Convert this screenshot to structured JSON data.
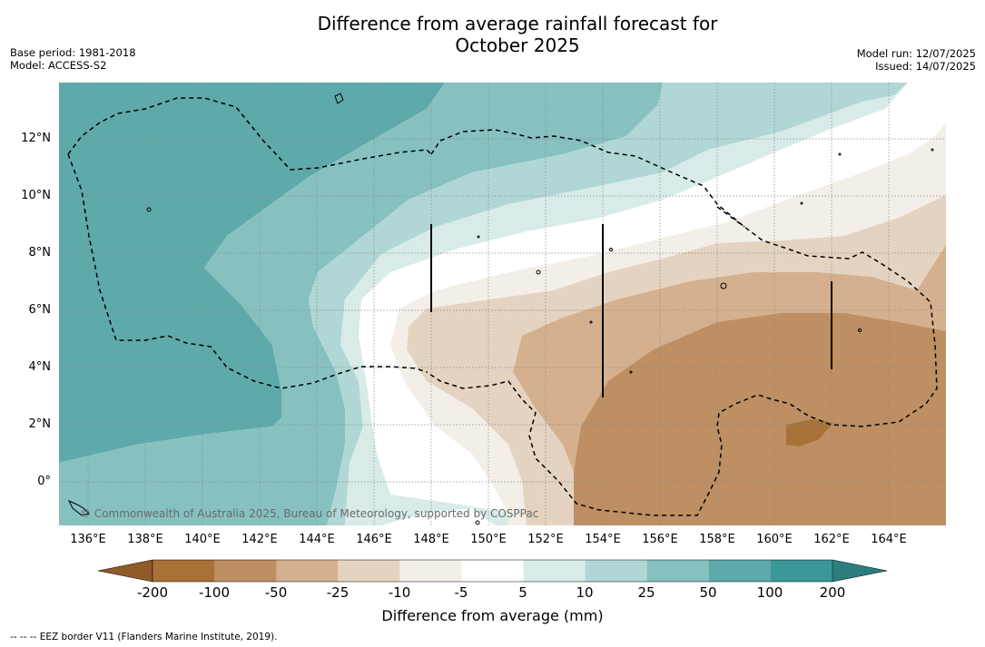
{
  "title": {
    "line1": "Difference from average rainfall forecast for",
    "line2": "October 2025"
  },
  "meta_left": {
    "base_period": "Base period: 1981-2018",
    "model": "Model: ACCESS-S2"
  },
  "meta_right": {
    "model_run": "Model run: 12/07/2025",
    "issued": "Issued: 14/07/2025"
  },
  "map": {
    "lat_labels": [
      "12°N",
      "10°N",
      "8°N",
      "6°N",
      "4°N",
      "2°N",
      "0°"
    ],
    "lon_labels": [
      "136°E",
      "138°E",
      "140°E",
      "142°E",
      "144°E",
      "146°E",
      "148°E",
      "150°E",
      "152°E",
      "154°E",
      "156°E",
      "158°E",
      "160°E",
      "162°E",
      "164°E"
    ],
    "copyright": "© Commonwealth of Australia 2025, Bureau of Meteorology, supported by COSPPac"
  },
  "colorbar": {
    "ticks": [
      "-200",
      "-100",
      "-50",
      "-25",
      "-10",
      "-5",
      "5",
      "10",
      "25",
      "50",
      "100",
      "200"
    ],
    "colors": [
      "#a87137",
      "#bd8f63",
      "#d4b08f",
      "#e5d3c1",
      "#f3eee8",
      "#ffffff",
      "#d8ebe9",
      "#b0d7d6",
      "#86c1c0",
      "#5eaaab",
      "#3a9897"
    ],
    "under_color": "#8f5a28",
    "over_color": "#2a7f7e",
    "label": "Difference from average (mm)"
  },
  "footnote": "--  --  -- EEZ border V11 (Flanders Marine Institute, 2019)."
}
